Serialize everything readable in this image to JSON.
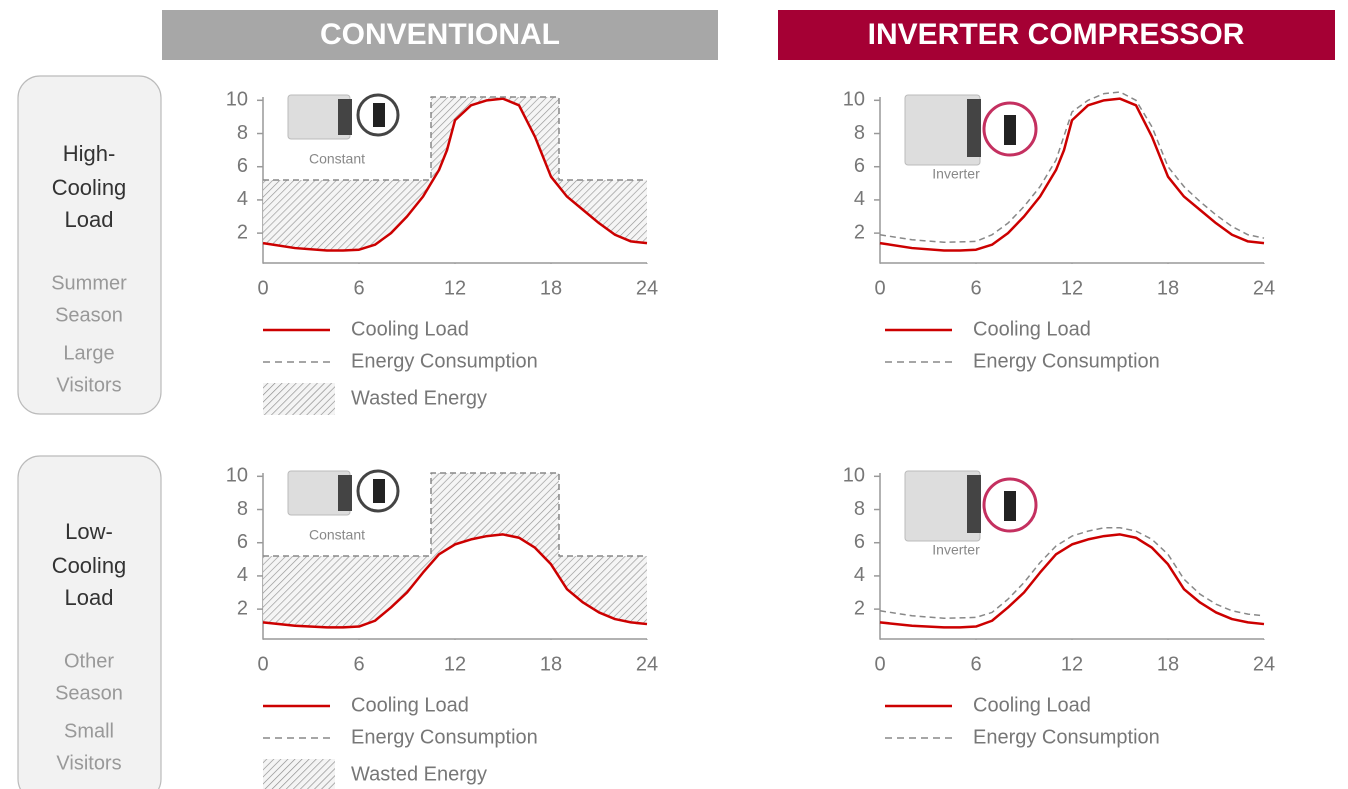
{
  "columns": [
    {
      "title": "CONVENTIONAL"
    },
    {
      "title": "INVERTER COMPRESSOR"
    }
  ],
  "rows": [
    {
      "title": [
        "High-",
        "Cooling",
        "Load"
      ],
      "notes": [
        "Summer",
        "Season",
        "Large",
        "Visitors"
      ]
    },
    {
      "title": [
        "Low-",
        "Cooling",
        "Load"
      ],
      "notes": [
        "Other",
        "Season",
        "Small",
        "Visitors"
      ]
    }
  ],
  "chart_data": [
    {
      "type": "line",
      "annotation": "Constant",
      "xlim": [
        0,
        24
      ],
      "ylim": [
        0.2,
        10.2
      ],
      "xticks": [
        0,
        6,
        12,
        18,
        24
      ],
      "yticks": [
        2,
        4,
        6,
        8,
        10
      ],
      "series": [
        {
          "name": "Cooling Load",
          "color": "#cc0000",
          "style": "solid",
          "x": [
            0,
            2,
            4,
            5,
            6,
            7,
            8,
            9,
            10,
            11,
            11.5,
            12,
            13,
            14,
            15,
            16,
            17,
            18,
            19,
            20,
            21,
            22,
            23,
            24
          ],
          "values": [
            1.4,
            1.1,
            0.95,
            0.95,
            1.0,
            1.3,
            2.0,
            3.0,
            4.2,
            5.8,
            7.0,
            8.8,
            9.7,
            10.0,
            10.1,
            9.7,
            7.8,
            5.4,
            4.2,
            3.4,
            2.6,
            1.9,
            1.5,
            1.4
          ]
        },
        {
          "name": "Energy Consumption",
          "color": "#888888",
          "style": "dashed",
          "x": [
            0,
            10.5,
            10.5,
            18.5,
            18.5,
            24
          ],
          "values": [
            5.2,
            5.2,
            10.2,
            10.2,
            5.2,
            5.2
          ]
        }
      ],
      "shaded_area": {
        "name": "Wasted Energy",
        "color": "#999999"
      }
    },
    {
      "type": "line",
      "annotation": "Inverter",
      "xlim": [
        0,
        24
      ],
      "ylim": [
        0.2,
        10.2
      ],
      "xticks": [
        0,
        6,
        12,
        18,
        24
      ],
      "yticks": [
        2,
        4,
        6,
        8,
        10
      ],
      "series": [
        {
          "name": "Cooling Load",
          "color": "#cc0000",
          "style": "solid",
          "x": [
            0,
            2,
            4,
            5,
            6,
            7,
            8,
            9,
            10,
            11,
            11.5,
            12,
            13,
            14,
            15,
            16,
            17,
            18,
            19,
            20,
            21,
            22,
            23,
            24
          ],
          "values": [
            1.4,
            1.1,
            0.95,
            0.95,
            1.0,
            1.3,
            2.0,
            3.0,
            4.2,
            5.8,
            7.0,
            8.8,
            9.7,
            10.0,
            10.1,
            9.7,
            7.8,
            5.4,
            4.2,
            3.4,
            2.6,
            1.9,
            1.5,
            1.4
          ]
        },
        {
          "name": "Energy Consumption",
          "color": "#888888",
          "style": "dashed",
          "x": [
            0,
            2,
            4,
            6,
            7,
            8,
            9,
            10,
            11,
            12,
            13,
            14,
            15,
            16,
            17,
            18,
            19,
            20,
            21,
            22,
            23,
            24
          ],
          "values": [
            1.9,
            1.6,
            1.45,
            1.5,
            1.9,
            2.6,
            3.6,
            4.8,
            6.4,
            9.3,
            10.0,
            10.4,
            10.5,
            10.0,
            8.4,
            6.0,
            4.8,
            3.9,
            3.1,
            2.4,
            1.9,
            1.7
          ]
        }
      ]
    },
    {
      "type": "line",
      "annotation": "Constant",
      "xlim": [
        0,
        24
      ],
      "ylim": [
        0.2,
        10.2
      ],
      "xticks": [
        0,
        6,
        12,
        18,
        24
      ],
      "yticks": [
        2,
        4,
        6,
        8,
        10
      ],
      "series": [
        {
          "name": "Cooling Load",
          "color": "#cc0000",
          "style": "solid",
          "x": [
            0,
            2,
            4,
            5,
            6,
            7,
            8,
            9,
            10,
            11,
            12,
            13,
            14,
            15,
            16,
            17,
            18,
            19,
            20,
            21,
            22,
            23,
            24
          ],
          "values": [
            1.2,
            1.0,
            0.9,
            0.9,
            0.95,
            1.3,
            2.1,
            3.0,
            4.2,
            5.3,
            5.9,
            6.2,
            6.4,
            6.5,
            6.3,
            5.7,
            4.7,
            3.2,
            2.4,
            1.8,
            1.4,
            1.2,
            1.1
          ]
        },
        {
          "name": "Energy Consumption",
          "color": "#888888",
          "style": "dashed",
          "x": [
            0,
            10.5,
            10.5,
            18.5,
            18.5,
            24
          ],
          "values": [
            5.2,
            5.2,
            10.2,
            10.2,
            5.2,
            5.2
          ]
        }
      ],
      "shaded_area": {
        "name": "Wasted Energy",
        "color": "#999999"
      }
    },
    {
      "type": "line",
      "annotation": "Inverter",
      "xlim": [
        0,
        24
      ],
      "ylim": [
        0.2,
        10.2
      ],
      "xticks": [
        0,
        6,
        12,
        18,
        24
      ],
      "yticks": [
        2,
        4,
        6,
        8,
        10
      ],
      "series": [
        {
          "name": "Cooling Load",
          "color": "#cc0000",
          "style": "solid",
          "x": [
            0,
            2,
            4,
            5,
            6,
            7,
            8,
            9,
            10,
            11,
            12,
            13,
            14,
            15,
            16,
            17,
            18,
            19,
            20,
            21,
            22,
            23,
            24
          ],
          "values": [
            1.2,
            1.0,
            0.9,
            0.9,
            0.95,
            1.3,
            2.1,
            3.0,
            4.2,
            5.3,
            5.9,
            6.2,
            6.4,
            6.5,
            6.3,
            5.7,
            4.7,
            3.2,
            2.4,
            1.8,
            1.4,
            1.2,
            1.1
          ]
        },
        {
          "name": "Energy Consumption",
          "color": "#888888",
          "style": "dashed",
          "x": [
            0,
            2,
            4,
            6,
            7,
            8,
            9,
            10,
            11,
            12,
            13,
            14,
            15,
            16,
            17,
            18,
            19,
            20,
            21,
            22,
            23,
            24
          ],
          "values": [
            1.9,
            1.6,
            1.45,
            1.5,
            1.8,
            2.6,
            3.6,
            4.8,
            5.8,
            6.4,
            6.7,
            6.9,
            6.9,
            6.7,
            6.2,
            5.3,
            3.8,
            2.9,
            2.3,
            1.9,
            1.7,
            1.6
          ]
        }
      ]
    }
  ]
}
